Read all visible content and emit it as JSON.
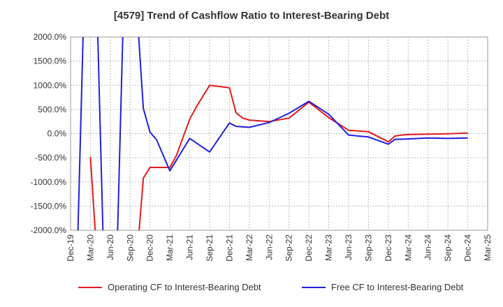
{
  "chart_data": {
    "type": "line",
    "title": "[4579]  Trend of Cashflow Ratio to Interest-Bearing Debt",
    "y_unit": "%",
    "ylim": [
      -2000,
      2000
    ],
    "y_ticks": [
      2000,
      1500,
      1000,
      500,
      0,
      -500,
      -1000,
      -1500,
      -2000
    ],
    "y_tick_labels": [
      "2000.0%",
      "1500.0%",
      "1000.0%",
      "500.0%",
      "0.0%",
      "-500.0%",
      "-1000.0%",
      "-1500.0%",
      "-2000.0%"
    ],
    "x_range": [
      "2019-12",
      "2025-03"
    ],
    "x_tick_labels": [
      "Dec-19",
      "Mar-20",
      "Jun-20",
      "Sep-20",
      "Dec-20",
      "Mar-21",
      "Jun-21",
      "Sep-21",
      "Dec-21",
      "Mar-22",
      "Jun-22",
      "Sep-22",
      "Dec-22",
      "Mar-23",
      "Jun-23",
      "Sep-23",
      "Dec-23",
      "Mar-24",
      "Jun-24",
      "Sep-24",
      "Dec-24",
      "Mar-25"
    ],
    "grid": true,
    "legend_position": "bottom",
    "series": [
      {
        "name": "Operating CF to Interest-Bearing Debt",
        "color": "#e31a1c",
        "x": [
          "2020-03",
          "2020-04",
          "2020-10",
          "2020-11",
          "2020-12",
          "2021-03",
          "2021-04",
          "2021-06",
          "2021-07",
          "2021-09",
          "2021-12",
          "2022-01",
          "2022-02",
          "2022-03",
          "2022-06",
          "2022-09",
          "2022-12",
          "2023-03",
          "2023-06",
          "2023-09",
          "2023-12",
          "2024-01",
          "2024-02",
          "2024-03",
          "2024-06",
          "2024-09",
          "2024-12"
        ],
        "values": [
          -480,
          -2600,
          -2600,
          -920,
          -700,
          -700,
          -450,
          300,
          550,
          1000,
          950,
          430,
          320,
          280,
          250,
          320,
          650,
          330,
          70,
          40,
          -170,
          -50,
          -30,
          -20,
          -10,
          -5,
          10
        ]
      },
      {
        "name": "Free CF to Interest-Bearing Debt",
        "color": "#1f1fdc",
        "x": [
          "2020-01",
          "2020-02",
          "2020-04",
          "2020-05",
          "2020-07",
          "2020-08",
          "2020-10",
          "2020-11",
          "2020-12",
          "2021-01",
          "2021-03",
          "2021-06",
          "2021-09",
          "2021-12",
          "2022-01",
          "2022-03",
          "2022-06",
          "2022-09",
          "2022-12",
          "2023-03",
          "2023-06",
          "2023-09",
          "2023-12",
          "2024-01",
          "2024-03",
          "2024-06",
          "2024-09",
          "2024-12"
        ],
        "values": [
          -2600,
          2600,
          2600,
          -2600,
          -2600,
          2600,
          2600,
          520,
          30,
          -130,
          -770,
          -100,
          -380,
          220,
          150,
          130,
          230,
          420,
          670,
          400,
          -30,
          -70,
          -220,
          -120,
          -110,
          -90,
          -100,
          -90
        ]
      }
    ]
  }
}
